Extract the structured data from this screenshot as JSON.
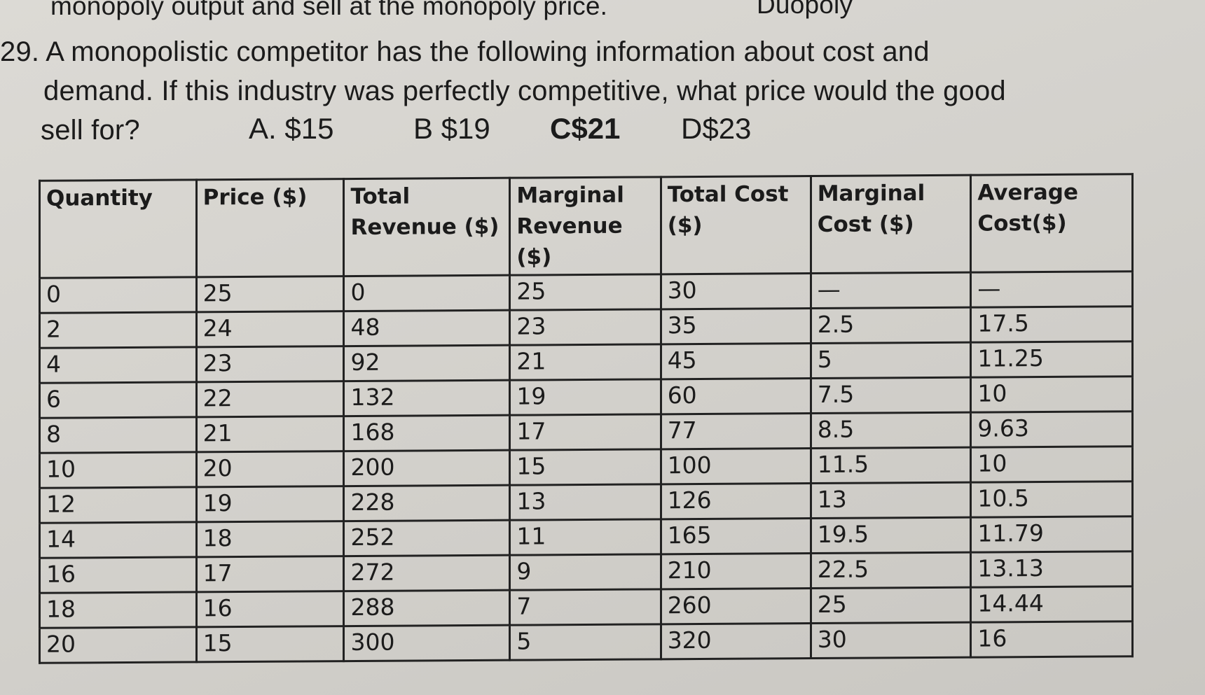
{
  "previous_text": "monopoly output and sell at the monopoly price.",
  "previous_label": "Duopoly",
  "question": {
    "line1": "29. A monopolistic competitor has the following information about cost and",
    "line2": "demand. If this industry was perfectly competitive, what price would the good",
    "line3": "sell for?",
    "options": [
      "A. $15",
      "B $19",
      "C$21",
      "D$23"
    ]
  },
  "table": {
    "headers": [
      "Quantity",
      "Price ($)",
      "Total Revenue ($)",
      "Marginal Revenue ($)",
      "Total Cost ($)",
      "Marginal Cost ($)",
      "Average Cost($)"
    ],
    "rows": [
      [
        "0",
        "25",
        "0",
        "25",
        "30",
        "—",
        "—"
      ],
      [
        "2",
        "24",
        "48",
        "23",
        "35",
        "2.5",
        "17.5"
      ],
      [
        "4",
        "23",
        "92",
        "21",
        "45",
        "5",
        "11.25"
      ],
      [
        "6",
        "22",
        "132",
        "19",
        "60",
        "7.5",
        "10"
      ],
      [
        "8",
        "21",
        "168",
        "17",
        "77",
        "8.5",
        "9.63"
      ],
      [
        "10",
        "20",
        "200",
        "15",
        "100",
        "11.5",
        "10"
      ],
      [
        "12",
        "19",
        "228",
        "13",
        "126",
        "13",
        "10.5"
      ],
      [
        "14",
        "18",
        "252",
        "11",
        "165",
        "19.5",
        "11.79"
      ],
      [
        "16",
        "17",
        "272",
        "9",
        "210",
        "22.5",
        "13.13"
      ],
      [
        "18",
        "16",
        "288",
        "7",
        "260",
        "25",
        "14.44"
      ],
      [
        "20",
        "15",
        "300",
        "5",
        "320",
        "30",
        "16"
      ]
    ]
  }
}
